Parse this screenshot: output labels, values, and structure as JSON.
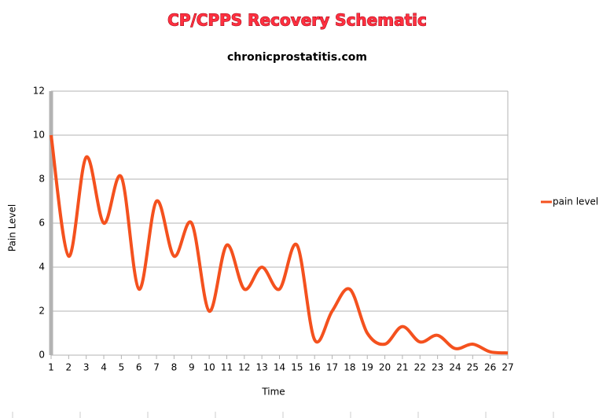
{
  "chart_data": {
    "type": "line",
    "title": "CP/CPPS Recovery Schematic",
    "subtitle": "chronicprostatitis.com",
    "x_label": "Time",
    "y_label": "Pain Level",
    "x": [
      1,
      2,
      3,
      4,
      5,
      6,
      7,
      8,
      9,
      10,
      11,
      12,
      13,
      14,
      15,
      16,
      17,
      18,
      19,
      20,
      21,
      22,
      23,
      24,
      25,
      26,
      27
    ],
    "xlim": [
      1,
      27
    ],
    "series": [
      {
        "name": "pain level",
        "color": "#f4511e",
        "values": [
          10,
          4.5,
          9,
          6,
          8.1,
          3,
          7,
          4.5,
          6,
          2,
          5,
          3,
          4,
          3,
          5,
          0.7,
          2,
          3,
          1,
          0.5,
          1.3,
          0.6,
          0.9,
          0.3,
          0.5,
          0.15,
          0.1
        ]
      }
    ],
    "ylim": [
      0,
      12
    ],
    "yticks": [
      0,
      2,
      4,
      6,
      8,
      10,
      12
    ],
    "grid": true,
    "legend": "right"
  }
}
